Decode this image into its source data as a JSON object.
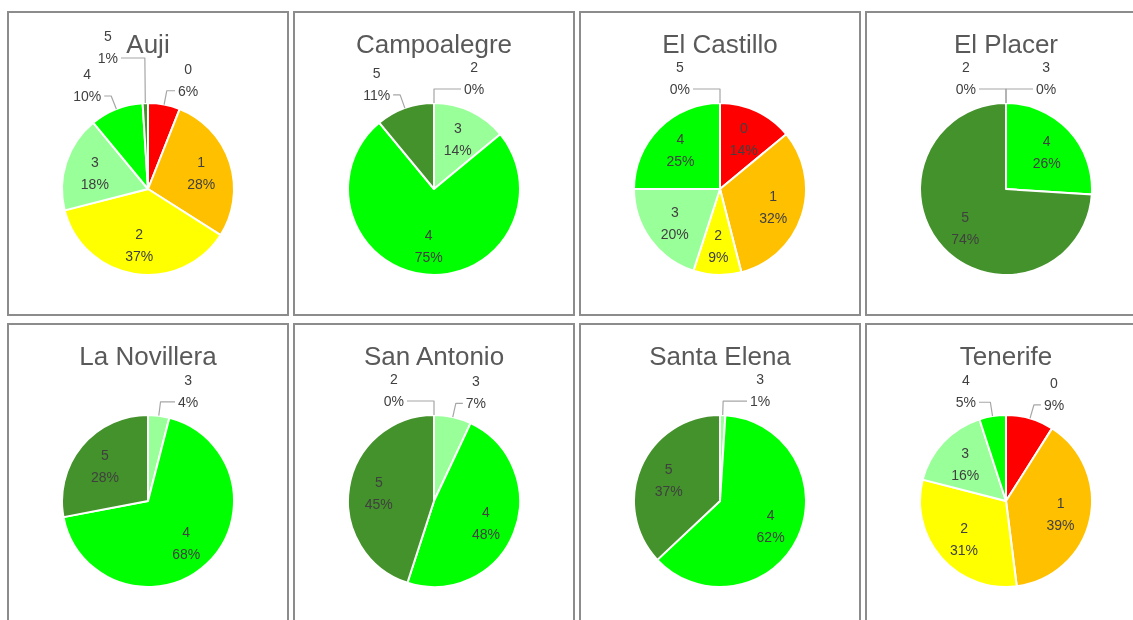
{
  "chart_data": [
    {
      "type": "pie",
      "title": "Auji",
      "categories": [
        "0",
        "1",
        "2",
        "3",
        "4",
        "5"
      ],
      "values": [
        6,
        28,
        37,
        18,
        10,
        1
      ],
      "colors": [
        "#ff0000",
        "#ffc000",
        "#ffff00",
        "#99ff99",
        "#00ff00",
        "#44922b"
      ],
      "value_labels": [
        "6%",
        "28%",
        "37%",
        "18%",
        "10%",
        "1%"
      ]
    },
    {
      "type": "pie",
      "title": "Campoalegre",
      "categories": [
        "2",
        "3",
        "4",
        "5"
      ],
      "values": [
        0,
        14,
        75,
        11
      ],
      "colors": [
        null,
        "#99ff99",
        "#00ff00",
        "#44922b"
      ],
      "value_labels": [
        "0%",
        "14%",
        "75%",
        "11%"
      ]
    },
    {
      "type": "pie",
      "title": "El Castillo",
      "categories": [
        "0",
        "1",
        "2",
        "3",
        "4",
        "5"
      ],
      "values": [
        14,
        32,
        9,
        20,
        25,
        0
      ],
      "colors": [
        "#ff0000",
        "#ffc000",
        "#ffff00",
        "#99ff99",
        "#00ff00",
        null
      ],
      "value_labels": [
        "14%",
        "32%",
        "9%",
        "20%",
        "25%",
        "0%"
      ]
    },
    {
      "type": "pie",
      "title": "El Placer",
      "categories": [
        "2",
        "3",
        "4",
        "5"
      ],
      "values": [
        0,
        0,
        26,
        74
      ],
      "colors": [
        null,
        null,
        "#00ff00",
        "#44922b"
      ],
      "value_labels": [
        "0%",
        "0%",
        "26%",
        "74%"
      ]
    },
    {
      "type": "pie",
      "title": "La Novillera",
      "categories": [
        "3",
        "4",
        "5"
      ],
      "values": [
        4,
        68,
        28
      ],
      "colors": [
        "#99ff99",
        "#00ff00",
        "#44922b"
      ],
      "value_labels": [
        "4%",
        "68%",
        "28%"
      ]
    },
    {
      "type": "pie",
      "title": "San Antonio",
      "categories": [
        "2",
        "3",
        "4",
        "5"
      ],
      "values": [
        0,
        7,
        48,
        45
      ],
      "colors": [
        null,
        "#99ff99",
        "#00ff00",
        "#44922b"
      ],
      "value_labels": [
        "0%",
        "7%",
        "48%",
        "45%"
      ]
    },
    {
      "type": "pie",
      "title": "Santa Elena",
      "categories": [
        "3",
        "4",
        "5"
      ],
      "values": [
        1,
        62,
        37
      ],
      "colors": [
        "#99ff99",
        "#00ff00",
        "#44922b"
      ],
      "value_labels": [
        "1%",
        "62%",
        "37%"
      ]
    },
    {
      "type": "pie",
      "title": "Tenerife",
      "categories": [
        "0",
        "1",
        "2",
        "3",
        "4"
      ],
      "values": [
        9,
        39,
        31,
        16,
        5
      ],
      "colors": [
        "#ff0000",
        "#ffc000",
        "#ffff00",
        "#99ff99",
        "#00ff00"
      ],
      "value_labels": [
        "9%",
        "39%",
        "31%",
        "16%",
        "5%"
      ]
    }
  ]
}
